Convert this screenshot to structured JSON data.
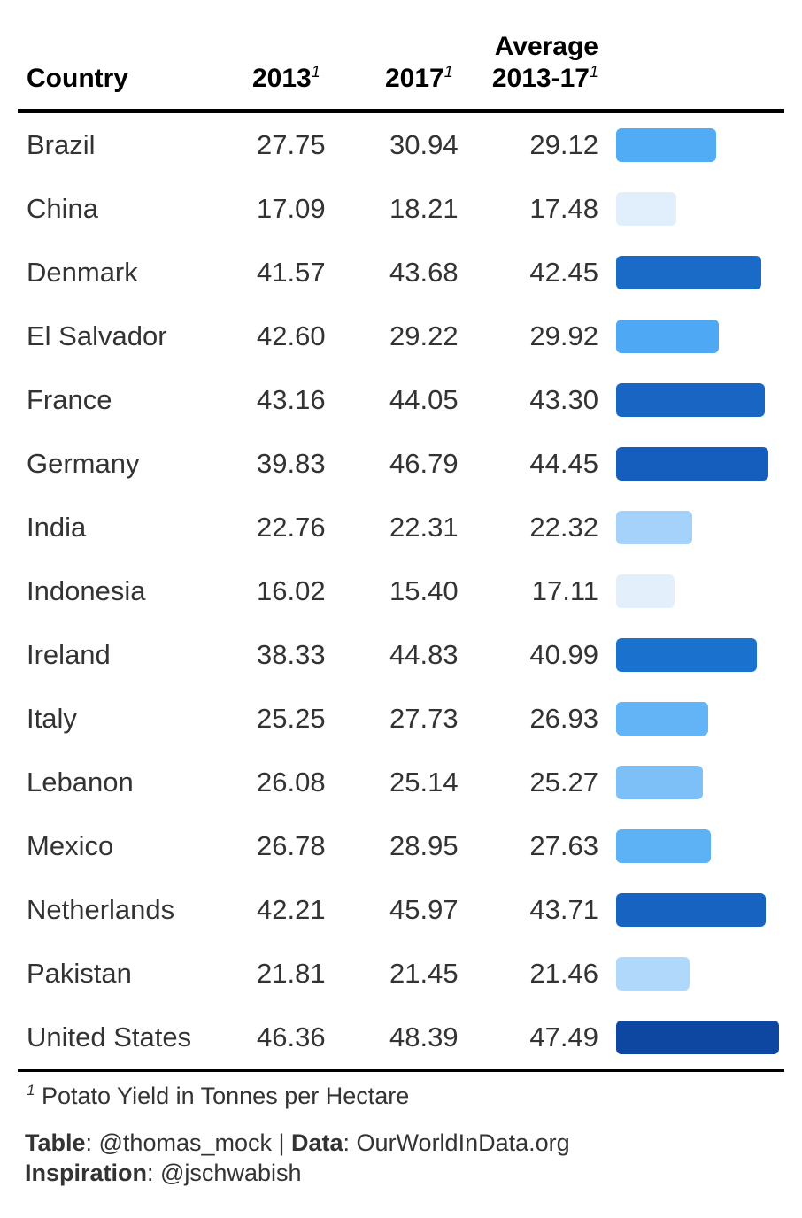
{
  "table": {
    "headers": {
      "country": "Country",
      "y2013": "2013",
      "y2017": "2017",
      "avg_line1": "Average",
      "avg_line2": "2013-17",
      "footnote_marker": "1"
    },
    "footnote": "Potato Yield in Tonnes per Hectare",
    "source": {
      "table_label": "Table",
      "table_value": ": @thomas_mock | ",
      "data_label": "Data",
      "data_value": ": OurWorldInData.org",
      "inspiration_label": "Inspiration",
      "inspiration_value": ": @jschwabish"
    }
  },
  "chart_data": {
    "type": "table",
    "columns": [
      "Country",
      "2013",
      "2017",
      "Average 2013-17"
    ],
    "rows": [
      {
        "country": "Brazil",
        "y2013": "27.75",
        "y2017": "30.94",
        "avg": "29.12",
        "avg_value": 29.12,
        "color": "#51ABF5"
      },
      {
        "country": "China",
        "y2013": "17.09",
        "y2017": "18.21",
        "avg": "17.48",
        "avg_value": 17.48,
        "color": "#E1EFFC"
      },
      {
        "country": "Denmark",
        "y2013": "41.57",
        "y2017": "43.68",
        "avg": "42.45",
        "avg_value": 42.45,
        "color": "#1A6BC8"
      },
      {
        "country": "El Salvador",
        "y2013": "42.60",
        "y2017": "29.22",
        "avg": "29.92",
        "avg_value": 29.92,
        "color": "#4EA8F4"
      },
      {
        "country": "France",
        "y2013": "43.16",
        "y2017": "44.05",
        "avg": "43.30",
        "avg_value": 43.3,
        "color": "#1865C4"
      },
      {
        "country": "Germany",
        "y2013": "39.83",
        "y2017": "46.79",
        "avg": "44.45",
        "avg_value": 44.45,
        "color": "#155EBE"
      },
      {
        "country": "India",
        "y2013": "22.76",
        "y2017": "22.31",
        "avg": "22.32",
        "avg_value": 22.32,
        "color": "#A5D2FA"
      },
      {
        "country": "Indonesia",
        "y2013": "16.02",
        "y2017": "15.40",
        "avg": "17.11",
        "avg_value": 17.11,
        "color": "#E3F0FC"
      },
      {
        "country": "Ireland",
        "y2013": "38.33",
        "y2017": "44.83",
        "avg": "40.99",
        "avg_value": 40.99,
        "color": "#1B72CE"
      },
      {
        "country": "Italy",
        "y2013": "25.25",
        "y2017": "27.73",
        "avg": "26.93",
        "avg_value": 26.93,
        "color": "#62B4F6"
      },
      {
        "country": "Lebanon",
        "y2013": "26.08",
        "y2017": "25.14",
        "avg": "25.27",
        "avg_value": 25.27,
        "color": "#7DC0F8"
      },
      {
        "country": "Mexico",
        "y2013": "26.78",
        "y2017": "28.95",
        "avg": "27.63",
        "avg_value": 27.63,
        "color": "#5DB2F6"
      },
      {
        "country": "Netherlands",
        "y2013": "42.21",
        "y2017": "45.97",
        "avg": "43.71",
        "avg_value": 43.71,
        "color": "#1763C2"
      },
      {
        "country": "Pakistan",
        "y2013": "21.81",
        "y2017": "21.45",
        "avg": "21.46",
        "avg_value": 21.46,
        "color": "#B0D8FB"
      },
      {
        "country": "United States",
        "y2013": "46.36",
        "y2017": "48.39",
        "avg": "47.49",
        "avg_value": 47.49,
        "color": "#0D47A1"
      }
    ],
    "bar_domain": [
      0,
      47.49
    ]
  }
}
